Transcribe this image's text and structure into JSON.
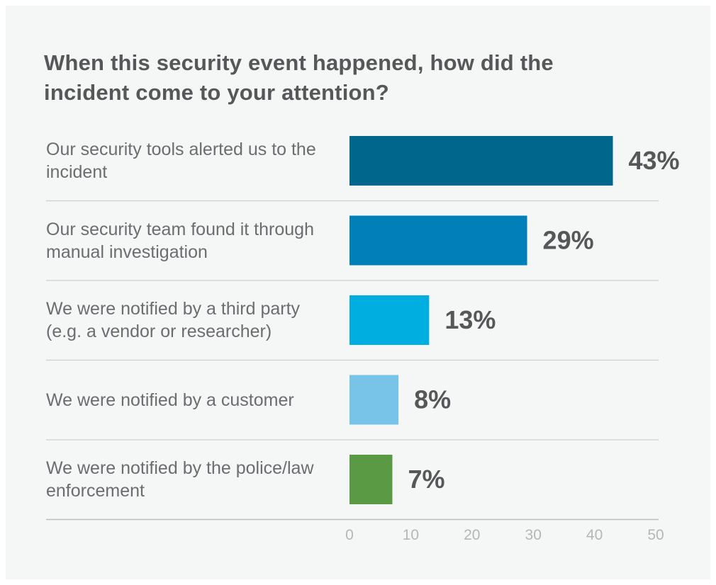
{
  "chart_data": {
    "type": "bar",
    "orientation": "horizontal",
    "title": "When this security event happened, how did the incident come to your attention?",
    "categories": [
      "Our security tools alerted us to the incident",
      "Our security team found it through manual investigation",
      "We were notified by a third party (e.g. a vendor or researcher)",
      "We were notified by a customer",
      "We were notified by the police/law enforcement"
    ],
    "values": [
      43,
      29,
      13,
      8,
      7
    ],
    "value_labels": [
      "43%",
      "29%",
      "13%",
      "8%",
      "7%"
    ],
    "colors": [
      "#00668c",
      "#007fb8",
      "#00aee0",
      "#78c3e8",
      "#5a9a45"
    ],
    "xlim": [
      0,
      50
    ],
    "xticks": [
      "0",
      "10",
      "20",
      "30",
      "40",
      "50"
    ],
    "grid": false,
    "legend": "none"
  }
}
